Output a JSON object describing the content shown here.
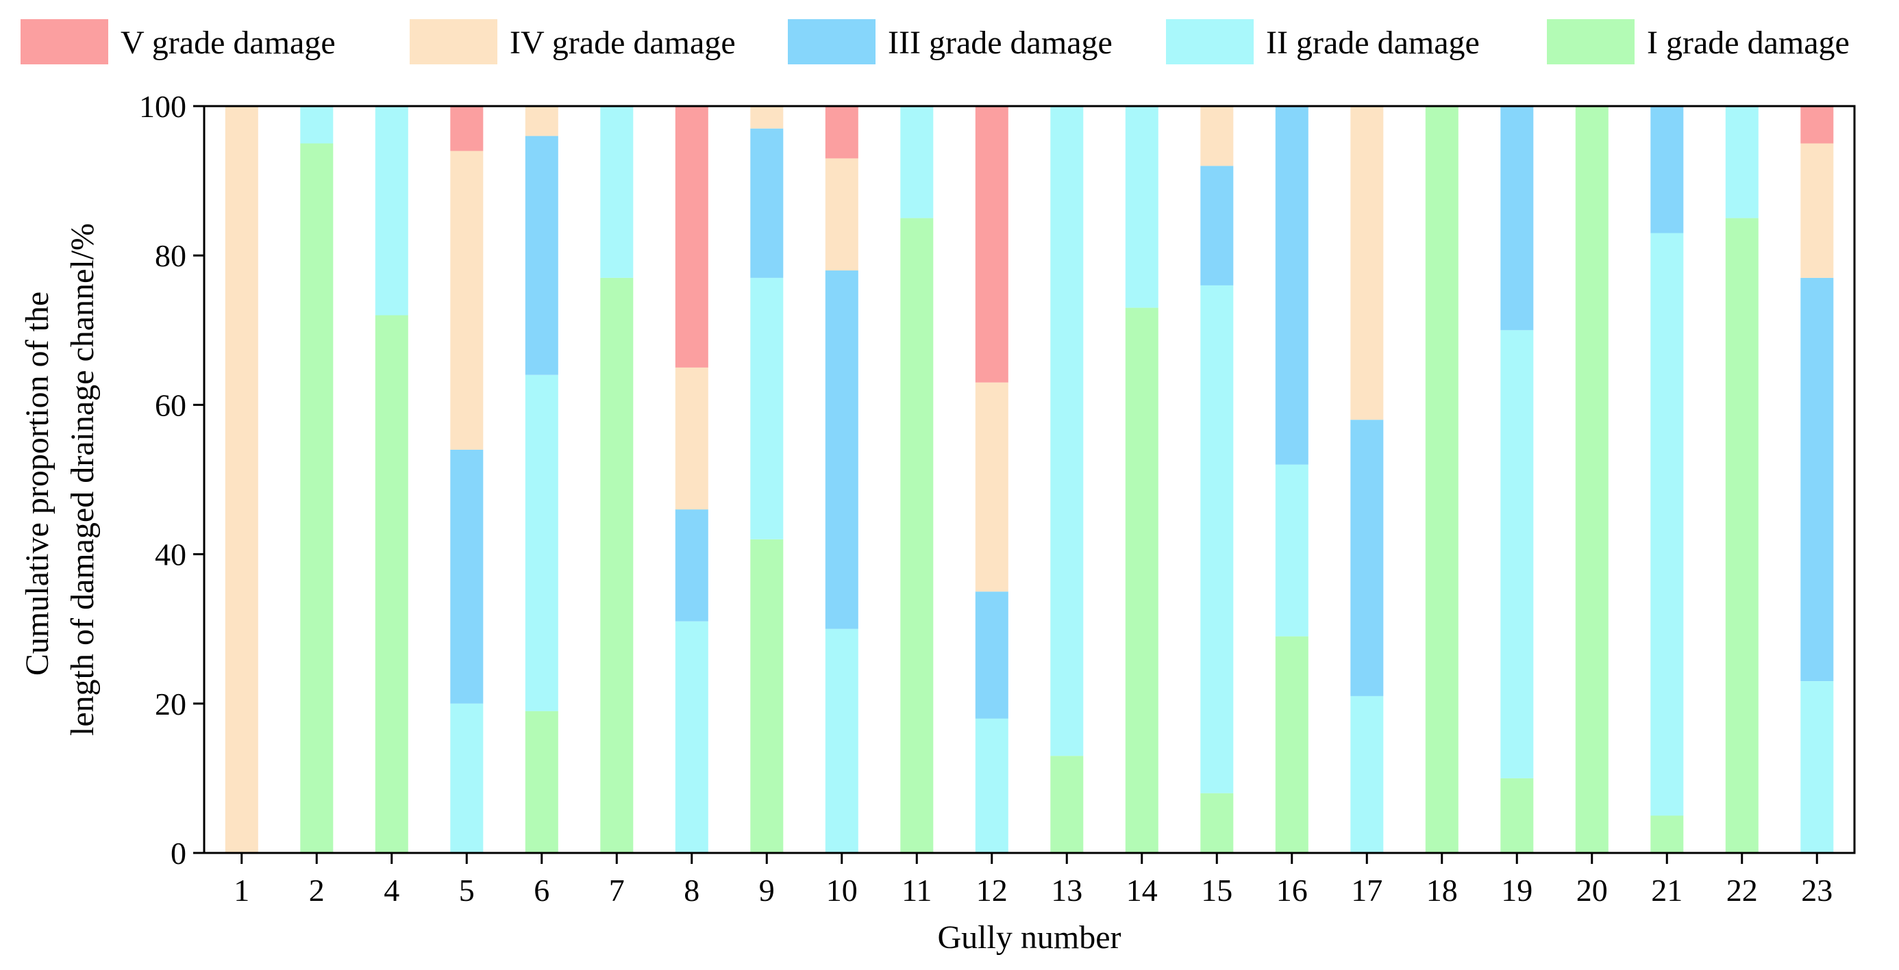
{
  "chart_data": {
    "type": "bar",
    "stacked": true,
    "title": "",
    "xlabel": "Gully number",
    "ylabel_lines": [
      "Cumulative proportion of the",
      "length of damaged drainage channel/%"
    ],
    "ylim": [
      0,
      100
    ],
    "yticks": [
      0,
      20,
      40,
      60,
      80,
      100
    ],
    "grid": false,
    "legend_position": "top",
    "categories": [
      "1",
      "2",
      "4",
      "5",
      "6",
      "7",
      "8",
      "9",
      "10",
      "11",
      "12",
      "13",
      "14",
      "15",
      "16",
      "17",
      "18",
      "19",
      "20",
      "21",
      "22",
      "23"
    ],
    "series": [
      {
        "name": "I grade damage",
        "color": "#b3fbb5",
        "values": [
          0,
          95,
          72,
          0,
          19,
          77,
          0,
          42,
          0,
          85,
          0,
          13,
          73,
          8,
          29,
          0,
          100,
          10,
          100,
          5,
          85,
          0
        ]
      },
      {
        "name": "II grade damage",
        "color": "#a9f8fb",
        "values": [
          0,
          5,
          28,
          20,
          45,
          23,
          31,
          35,
          30,
          15,
          18,
          87,
          27,
          68,
          23,
          21,
          0,
          60,
          0,
          78,
          15,
          23
        ]
      },
      {
        "name": "III grade damage",
        "color": "#86d6fb",
        "values": [
          0,
          0,
          0,
          34,
          32,
          0,
          15,
          20,
          48,
          0,
          17,
          0,
          0,
          16,
          48,
          37,
          0,
          30,
          0,
          17,
          0,
          54
        ]
      },
      {
        "name": "IV grade damage",
        "color": "#fde3c3",
        "values": [
          100,
          0,
          0,
          40,
          4,
          0,
          19,
          3,
          15,
          0,
          28,
          0,
          0,
          8,
          0,
          42,
          0,
          0,
          0,
          0,
          0,
          18
        ]
      },
      {
        "name": "V grade damage",
        "color": "#fb9fa0",
        "values": [
          0,
          0,
          0,
          6,
          0,
          0,
          35,
          0,
          7,
          0,
          37,
          0,
          0,
          0,
          0,
          0,
          0,
          0,
          0,
          0,
          0,
          5
        ]
      }
    ],
    "legend_order": [
      "V grade damage",
      "IV grade damage",
      "III grade damage",
      "II grade damage",
      "I grade damage"
    ]
  }
}
